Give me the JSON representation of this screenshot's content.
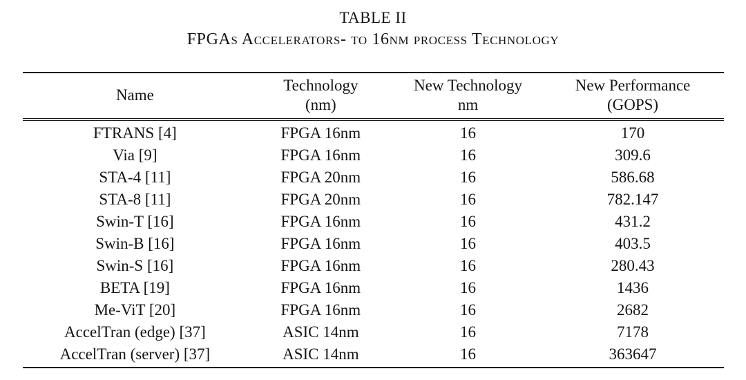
{
  "caption": {
    "label": "TABLE II",
    "subtitle": "FPGAs Accelerators- to 16nm process Technology"
  },
  "table": {
    "columns": [
      {
        "line1": "Name",
        "line2": ""
      },
      {
        "line1": "Technology",
        "line2": "(nm)"
      },
      {
        "line1": "New Technology",
        "line2": "nm"
      },
      {
        "line1": "New Performance",
        "line2": "(GOPS)"
      }
    ],
    "rows": [
      {
        "name": "FTRANS [4]",
        "technology": "FPGA 16nm",
        "new_technology": "16",
        "new_performance": "170"
      },
      {
        "name": "Via [9]",
        "technology": "FPGA 16nm",
        "new_technology": "16",
        "new_performance": "309.6"
      },
      {
        "name": "STA-4 [11]",
        "technology": "FPGA 20nm",
        "new_technology": "16",
        "new_performance": "586.68"
      },
      {
        "name": "STA-8 [11]",
        "technology": "FPGA 20nm",
        "new_technology": "16",
        "new_performance": "782.147"
      },
      {
        "name": "Swin-T [16]",
        "technology": "FPGA 16nm",
        "new_technology": "16",
        "new_performance": "431.2"
      },
      {
        "name": "Swin-B [16]",
        "technology": "FPGA 16nm",
        "new_technology": "16",
        "new_performance": "403.5"
      },
      {
        "name": "Swin-S [16]",
        "technology": "FPGA 16nm",
        "new_technology": "16",
        "new_performance": "280.43"
      },
      {
        "name": "BETA [19]",
        "technology": "FPGA 16nm",
        "new_technology": "16",
        "new_performance": "1436"
      },
      {
        "name": "Me-ViT [20]",
        "technology": "FPGA 16nm",
        "new_technology": "16",
        "new_performance": "2682"
      },
      {
        "name": "AccelTran (edge) [37]",
        "technology": "ASIC 14nm",
        "new_technology": "16",
        "new_performance": "7178"
      },
      {
        "name": "AccelTran (server) [37]",
        "technology": "ASIC 14nm",
        "new_technology": "16",
        "new_performance": "363647"
      }
    ]
  },
  "colors": {
    "text": "#141414",
    "background": "#ffffff",
    "rule": "#141414"
  }
}
